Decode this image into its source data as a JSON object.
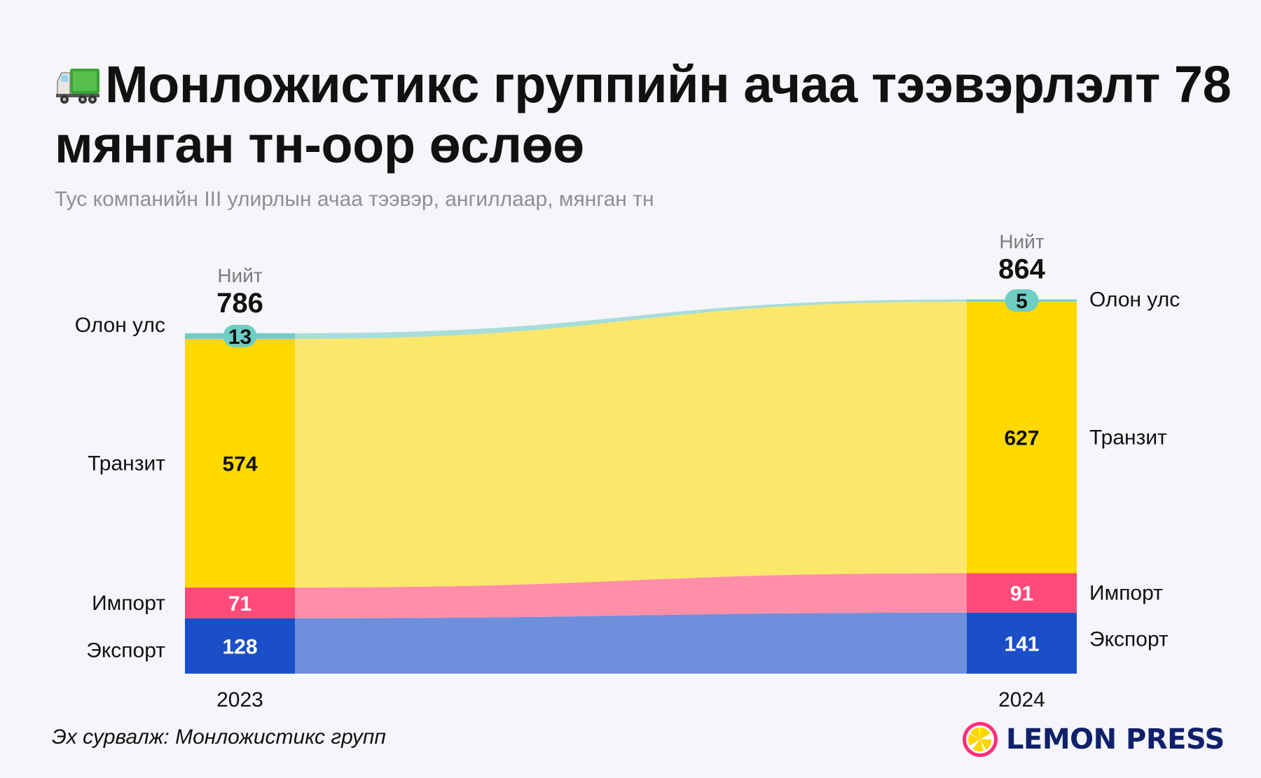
{
  "header": {
    "title_icon": "truck-icon",
    "title": "Монложистикс группийн ачаа тээвэрлэлт 78 мянган тн-оор өслөө",
    "subtitle": "Тус компанийн III улирлын ачаа тээвэр, ангиллаар, мянган тн"
  },
  "chart_data": {
    "type": "stacked-bar-flow",
    "categories": [
      "2023",
      "2024"
    ],
    "total_label": "Нийт",
    "totals": [
      786,
      864
    ],
    "series": [
      {
        "name": "Экспорт",
        "values": [
          128,
          141
        ],
        "color": "#1a4fc7",
        "flow_color": "#6f8fdc",
        "label_color": "#ffffff"
      },
      {
        "name": "Импорт",
        "values": [
          71,
          91
        ],
        "color": "#ff4a7a",
        "flow_color": "#ff8fa8",
        "label_color": "#ffffff"
      },
      {
        "name": "Транзит",
        "values": [
          574,
          627
        ],
        "color": "#ffd900",
        "flow_color": "#fbe76a",
        "label_color": "#111111"
      },
      {
        "name": "Олон улс",
        "values": [
          13,
          5
        ],
        "color": "#6fcdc4",
        "flow_color": "#a8ddd8",
        "label_color": "#111111"
      }
    ]
  },
  "footer": {
    "source": "Эх сурвалж: Монложистикс групп",
    "brand": "LEMON PRESS",
    "brand_icon": "lemon-icon"
  }
}
